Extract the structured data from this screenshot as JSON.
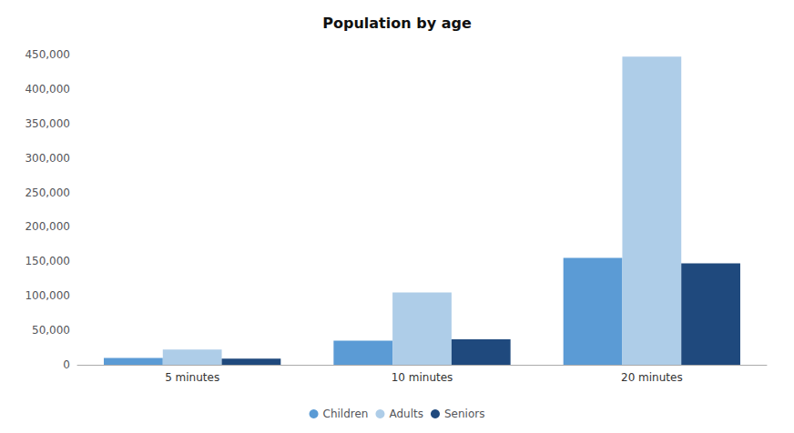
{
  "chart_data": {
    "type": "bar",
    "title": "Population by age",
    "categories": [
      "5 minutes",
      "10 minutes",
      "20 minutes"
    ],
    "series": [
      {
        "name": "Children",
        "color": "#5b9bd5",
        "values": [
          10000,
          35000,
          155000
        ]
      },
      {
        "name": "Adults",
        "color": "#aecde8",
        "values": [
          22000,
          105000,
          447000
        ]
      },
      {
        "name": "Seniors",
        "color": "#1f497d",
        "values": [
          9000,
          37000,
          147000
        ]
      }
    ],
    "ylim": [
      0,
      450000
    ],
    "yticks": [
      0,
      {
        "value": 50000,
        "label": "50,000"
      },
      {
        "value": 100000,
        "label": "100,000"
      },
      {
        "value": 150000,
        "label": "150,000"
      },
      {
        "value": 200000,
        "label": "200,000"
      },
      {
        "value": 250000,
        "label": "250,000"
      },
      {
        "value": 300000,
        "label": "300,000"
      },
      {
        "value": 350000,
        "label": "350,000"
      },
      {
        "value": 400000,
        "label": "400,000"
      },
      {
        "value": 450000,
        "label": "450,000"
      }
    ],
    "grid": false,
    "legend": "bottom"
  }
}
